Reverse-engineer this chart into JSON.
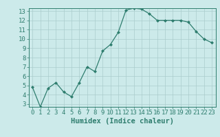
{
  "x": [
    0,
    1,
    2,
    3,
    4,
    5,
    6,
    7,
    8,
    9,
    10,
    11,
    12,
    13,
    14,
    15,
    16,
    17,
    18,
    19,
    20,
    21,
    22,
    23
  ],
  "y": [
    4.8,
    2.7,
    4.7,
    5.3,
    4.3,
    3.8,
    5.3,
    7.0,
    6.5,
    8.7,
    9.4,
    10.7,
    13.1,
    13.3,
    13.2,
    12.7,
    12.0,
    12.0,
    12.0,
    12.0,
    11.8,
    10.8,
    10.0,
    9.6
  ],
  "xlabel": "Humidex (Indice chaleur)",
  "ylim_min": 3,
  "ylim_max": 13,
  "xlim_min": 0,
  "xlim_max": 23,
  "yticks": [
    3,
    4,
    5,
    6,
    7,
    8,
    9,
    10,
    11,
    12,
    13
  ],
  "xticks": [
    0,
    1,
    2,
    3,
    4,
    5,
    6,
    7,
    8,
    9,
    10,
    11,
    12,
    13,
    14,
    15,
    16,
    17,
    18,
    19,
    20,
    21,
    22,
    23
  ],
  "line_color": "#2e7d6e",
  "marker_color": "#2e7d6e",
  "bg_color": "#cceaea",
  "grid_color": "#aacccc",
  "axis_color": "#2e7d6e",
  "label_color": "#2e7d6e",
  "xlabel_fontsize": 7.5,
  "tick_fontsize": 6.5
}
